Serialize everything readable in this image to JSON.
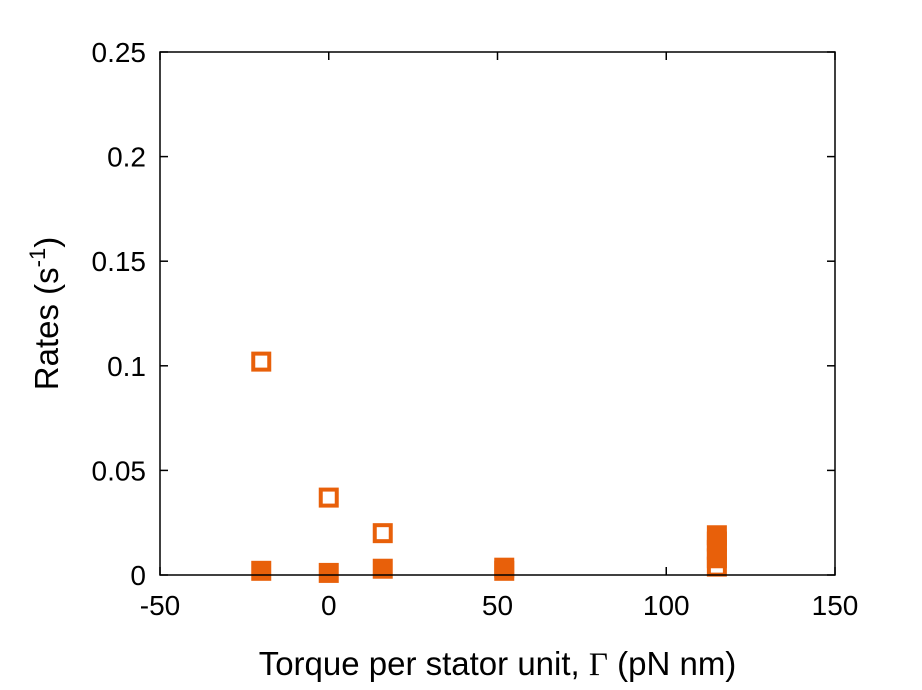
{
  "chart_data": {
    "type": "scatter",
    "xlabel": {
      "prefix": "Torque per stator unit, ",
      "symbol": "Γ",
      "suffix": " (pN nm)"
    },
    "ylabel": {
      "prefix": "Rates (s",
      "superscript": "-1",
      "suffix": ")"
    },
    "xlim": [
      -50,
      150
    ],
    "ylim": [
      0,
      0.25
    ],
    "xticks": [
      -50,
      0,
      50,
      100,
      150
    ],
    "xtick_labels": [
      "-50",
      "0",
      "50",
      "100",
      "150"
    ],
    "yticks": [
      0,
      0.05,
      0.1,
      0.15,
      0.2,
      0.25
    ],
    "ytick_labels": [
      "0",
      "0.05",
      "0.1",
      "0.15",
      "0.2",
      "0.25"
    ],
    "marker_color": "#E8600A",
    "series": [
      {
        "marker": "square-filled",
        "points": [
          {
            "x": -20,
            "y": 0.002
          },
          {
            "x": 0,
            "y": 0.001
          },
          {
            "x": 16,
            "y": 0.003
          },
          {
            "x": 52,
            "y": 0.002
          },
          {
            "x": 52,
            "y": 0.0035
          },
          {
            "x": 115,
            "y": 0.008
          },
          {
            "x": 115,
            "y": 0.012
          },
          {
            "x": 115,
            "y": 0.016
          },
          {
            "x": 115,
            "y": 0.019
          }
        ]
      },
      {
        "marker": "square-open",
        "points": [
          {
            "x": -20,
            "y": 0.102
          },
          {
            "x": 0,
            "y": 0.037
          },
          {
            "x": 16,
            "y": 0.02
          },
          {
            "x": 115,
            "y": 0.004
          }
        ]
      }
    ]
  }
}
